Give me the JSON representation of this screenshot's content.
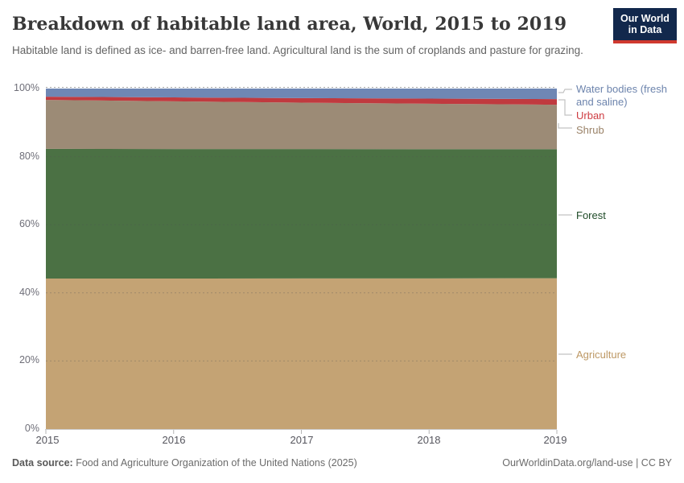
{
  "header": {
    "title": "Breakdown of habitable land area, World, 2015 to 2019",
    "subtitle": "Habitable land is defined as ice- and barren-free land. Agricultural land is the sum of croplands and pasture for grazing.",
    "logo": {
      "line1": "Our World",
      "line2": "in Data",
      "bg": "#12284c",
      "accent": "#d0392f"
    }
  },
  "chart_data": {
    "type": "area",
    "stacked": true,
    "unit": "%",
    "x": [
      2015,
      2016,
      2017,
      2018,
      2019
    ],
    "series": [
      {
        "name": "Agriculture",
        "color": "#c4a374",
        "label_color": "#bd9864",
        "values": [
          44.2,
          44.2,
          44.25,
          44.25,
          44.3
        ]
      },
      {
        "name": "Forest",
        "color": "#4b7144",
        "label_color": "#1f4b28",
        "values": [
          38.1,
          38.05,
          38.0,
          37.95,
          37.9
        ]
      },
      {
        "name": "Shrub",
        "color": "#9c8b76",
        "label_color": "#9a8268",
        "values": [
          14.35,
          14.0,
          13.6,
          13.35,
          13.05
        ]
      },
      {
        "name": "Urban",
        "color": "#c03a3f",
        "label_color": "#ce3c42",
        "values": [
          0.95,
          1.15,
          1.35,
          1.5,
          1.65
        ]
      },
      {
        "name": "Water bodies (fresh and saline)",
        "color": "#6f87b4",
        "label_color": "#6d84ad",
        "values": [
          2.4,
          2.6,
          2.8,
          2.95,
          3.1
        ]
      }
    ],
    "ylim": [
      0,
      100
    ],
    "yticks": [
      "0%",
      "20%",
      "40%",
      "60%",
      "80%",
      "100%"
    ],
    "xticks": [
      "2015",
      "2016",
      "2017",
      "2018",
      "2019"
    ],
    "grid": "dashed-horizontal",
    "legend_position": "right"
  },
  "footer": {
    "source_label": "Data source:",
    "source": "Food and Agriculture Organization of the United Nations (2025)",
    "link": "OurWorldinData.org/land-use",
    "separator": "|",
    "license": "CC BY"
  }
}
